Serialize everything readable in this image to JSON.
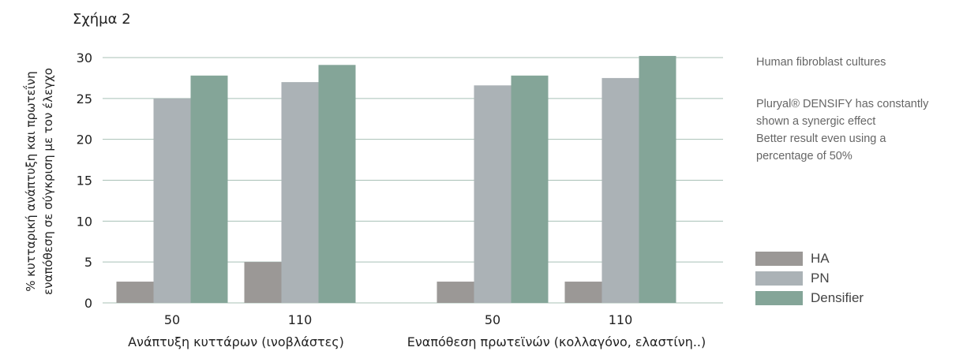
{
  "title": "Σχήμα 2",
  "chart_data": {
    "type": "bar",
    "ylabel_line1": "% κυτταρική ανάπτυξη και πρωτεΐνη",
    "ylabel_line2": "εναπόθεση σε σύγκριση με τον έλεγχο",
    "ylim": [
      0,
      30
    ],
    "yticks": [
      0,
      5,
      10,
      15,
      20,
      25,
      30
    ],
    "grid": true,
    "groups": [
      {
        "label": "Ανάπτυξη κυττάρων (ινοβλάστες)",
        "categories": [
          "50",
          "110"
        ]
      },
      {
        "label": "Εναπόθεση πρωτεϊνών (κολλαγόνο, ελαστίνη..)",
        "categories": [
          "50",
          "110"
        ]
      }
    ],
    "series": [
      {
        "name": "HA",
        "color": "#9b9896",
        "values": [
          2.6,
          5.0,
          2.6,
          2.6
        ]
      },
      {
        "name": "PN",
        "color": "#abb2b6",
        "values": [
          25.0,
          27.0,
          26.6,
          27.5
        ]
      },
      {
        "name": "Densifier",
        "color": "#84a598",
        "values": [
          27.8,
          29.1,
          27.8,
          30.2
        ]
      }
    ],
    "legend_position": "bottom-right"
  },
  "notes": {
    "line1": "Human fibroblast cultures",
    "line2": "Pluryal® DENSIFY has constantly",
    "line3": "shown a synergic effect",
    "line4": "Better result even using a",
    "line5": "percentage of 50%"
  }
}
